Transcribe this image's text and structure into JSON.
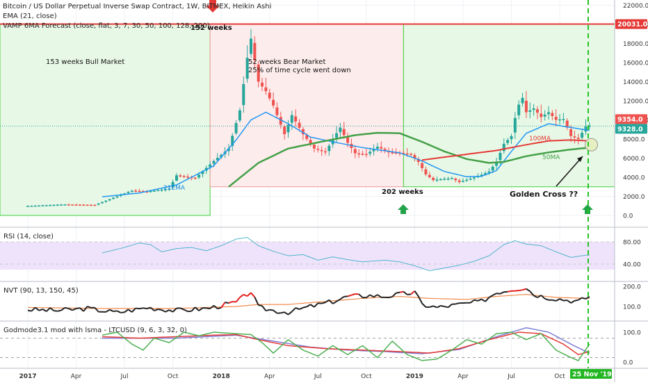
{
  "header": {
    "line1": "Bitcoin / US Dollar Perpetual Inverse Swap Contract, 1W, BITMEX, Heikin Ashi",
    "line2": "EMA (21, close)",
    "line3": "VAMP 6MA Forecast (close, flat, 3, 7, 30, 50, 100, 128, 200)"
  },
  "annotations": {
    "bull": "153 weeks Bull Market",
    "bear1": "52 weeks Bear Market",
    "bear2": "25% of time cycle went down",
    "top_weeks": "152 weeks",
    "bottom_weeks": "202 weeks",
    "golden": "Golden Cross ??",
    "ema_label": "21EMA",
    "ma100_label": "100MA",
    "ma50_label": "50MA"
  },
  "badges": {
    "level": "20031.0",
    "price1": "9354.0",
    "price2": "9328.0",
    "date": "25 Nov '19"
  },
  "colors": {
    "bull": "#26a69a",
    "bear": "#ef5350",
    "ema": "#2196f3",
    "ma100": "#e53935",
    "ma50": "#43a047",
    "green_zone": "#e8f8e6",
    "red_zone": "#fdecec",
    "rsi_band": "#efe3fb",
    "nvt_black": "#222222",
    "nvt_red": "#e31c1c",
    "nvt_orange": "#f08a4b",
    "god_green": "#4caf50",
    "god_red": "#e53935",
    "god_blue": "#7e7ed8",
    "dashed_green": "#22c322"
  },
  "chart_data": [
    {
      "type": "candlestick",
      "title": "Bitcoin / US Dollar Perpetual Inverse Swap Contract, 1W, BITMEX, Heikin Ashi",
      "x_ticks": [
        "2017",
        "Apr",
        "Jul",
        "Oct",
        "2018",
        "Apr",
        "Jul",
        "Oct",
        "2019",
        "Apr",
        "Jul",
        "Oct"
      ],
      "y_ticks": [
        "0.0",
        "2000.0",
        "4000.0",
        "6000.0",
        "8000.0",
        "10000.0",
        "12000.0",
        "14000.0",
        "16000.0",
        "18000.0",
        "20000.0",
        "22000.0"
      ],
      "ylim": [
        -700,
        22500
      ],
      "series_keypoints": {
        "price_close": [
          [
            0,
            1000
          ],
          [
            10,
            1150
          ],
          [
            18,
            1100
          ],
          [
            28,
            2600
          ],
          [
            32,
            2500
          ],
          [
            38,
            2800
          ],
          [
            40,
            4200
          ],
          [
            45,
            3900
          ],
          [
            50,
            5700
          ],
          [
            54,
            7000
          ],
          [
            57,
            11000
          ],
          [
            59,
            16500
          ],
          [
            60,
            18500
          ],
          [
            62,
            14000
          ],
          [
            64,
            13000
          ],
          [
            66,
            11500
          ],
          [
            69,
            8500
          ],
          [
            71,
            10500
          ],
          [
            74,
            8500
          ],
          [
            77,
            7000
          ],
          [
            80,
            6600
          ],
          [
            82,
            8000
          ],
          [
            84,
            9200
          ],
          [
            86,
            7600
          ],
          [
            88,
            6500
          ],
          [
            91,
            6400
          ],
          [
            94,
            7200
          ],
          [
            97,
            6600
          ],
          [
            100,
            6550
          ],
          [
            103,
            6400
          ],
          [
            105,
            5600
          ],
          [
            107,
            4300
          ],
          [
            109,
            3700
          ],
          [
            111,
            3800
          ],
          [
            114,
            3900
          ],
          [
            116,
            3500
          ],
          [
            119,
            3850
          ],
          [
            121,
            4100
          ],
          [
            124,
            4600
          ],
          [
            126,
            5600
          ],
          [
            128,
            7500
          ],
          [
            130,
            8300
          ],
          [
            131,
            10200
          ],
          [
            132,
            11600
          ],
          [
            133,
            12300
          ],
          [
            134,
            10800
          ],
          [
            136,
            11200
          ],
          [
            138,
            10300
          ],
          [
            140,
            10800
          ],
          [
            142,
            10000
          ],
          [
            144,
            10100
          ],
          [
            146,
            8300
          ],
          [
            148,
            8000
          ],
          [
            150,
            9300
          ],
          [
            151,
            9400
          ]
        ],
        "ema21": [
          [
            20,
            1950
          ],
          [
            30,
            2350
          ],
          [
            40,
            3200
          ],
          [
            50,
            5200
          ],
          [
            56,
            7900
          ],
          [
            60,
            10000
          ],
          [
            64,
            10800
          ],
          [
            70,
            9600
          ],
          [
            76,
            8200
          ],
          [
            82,
            7700
          ],
          [
            90,
            7100
          ],
          [
            100,
            6550
          ],
          [
            106,
            5700
          ],
          [
            112,
            4600
          ],
          [
            118,
            4050
          ],
          [
            122,
            4100
          ],
          [
            126,
            4700
          ],
          [
            130,
            6700
          ],
          [
            134,
            8600
          ],
          [
            140,
            9600
          ],
          [
            146,
            9200
          ],
          [
            151,
            8900
          ]
        ],
        "ma50": [
          [
            54,
            3000
          ],
          [
            62,
            5500
          ],
          [
            70,
            7000
          ],
          [
            80,
            7800
          ],
          [
            88,
            8400
          ],
          [
            94,
            8650
          ],
          [
            100,
            8600
          ],
          [
            106,
            7700
          ],
          [
            112,
            6700
          ],
          [
            118,
            5900
          ],
          [
            124,
            5500
          ],
          [
            128,
            5600
          ],
          [
            134,
            6200
          ],
          [
            140,
            6600
          ],
          [
            146,
            6900
          ],
          [
            151,
            7100
          ]
        ],
        "ma100": [
          [
            106,
            5800
          ],
          [
            116,
            6300
          ],
          [
            126,
            6800
          ],
          [
            134,
            7400
          ],
          [
            140,
            7800
          ],
          [
            146,
            7900
          ],
          [
            151,
            7800
          ]
        ]
      },
      "marker_labels": [
        "153 weeks Bull Market",
        "52 weeks Bear Market",
        "152 weeks",
        "202 weeks",
        "Golden Cross ??",
        "21EMA",
        "100MA",
        "50MA"
      ],
      "badges": [
        "20031.0",
        "9354.0",
        "9328.0",
        "25 Nov '19"
      ]
    },
    {
      "type": "line",
      "title": "RSI (14, close)",
      "y_ticks": [
        "40.00",
        "80.00"
      ],
      "ylim": [
        20,
        100
      ],
      "band": [
        30,
        70
      ],
      "series": [
        {
          "values": [
            [
              20,
              60
            ],
            [
              26,
              70
            ],
            [
              30,
              78
            ],
            [
              33,
              75
            ],
            [
              36,
              62
            ],
            [
              40,
              68
            ],
            [
              44,
              70
            ],
            [
              48,
              64
            ],
            [
              52,
              73
            ],
            [
              56,
              85
            ],
            [
              59,
              88
            ],
            [
              62,
              73
            ],
            [
              66,
              63
            ],
            [
              70,
              55
            ],
            [
              74,
              57
            ],
            [
              78,
              47
            ],
            [
              82,
              53
            ],
            [
              86,
              48
            ],
            [
              90,
              44
            ],
            [
              96,
              47
            ],
            [
              100,
              44
            ],
            [
              104,
              37
            ],
            [
              108,
              28
            ],
            [
              112,
              33
            ],
            [
              116,
              38
            ],
            [
              120,
              45
            ],
            [
              124,
              55
            ],
            [
              128,
              75
            ],
            [
              131,
              82
            ],
            [
              134,
              76
            ],
            [
              138,
              73
            ],
            [
              142,
              62
            ],
            [
              146,
              52
            ],
            [
              150,
              56
            ],
            [
              151,
              56
            ]
          ]
        }
      ]
    },
    {
      "type": "line",
      "title": "NVT (90, 13, 150, 45)",
      "y_ticks": [
        "100.0",
        "200.0"
      ],
      "ylim": [
        20,
        220
      ],
      "series": [
        {
          "values": [
            [
              0,
              85
            ],
            [
              8,
              80
            ],
            [
              16,
              90
            ],
            [
              24,
              70
            ],
            [
              32,
              95
            ],
            [
              40,
              80
            ],
            [
              48,
              90
            ],
            [
              56,
              120
            ],
            [
              60,
              175
            ],
            [
              62,
              95
            ],
            [
              66,
              80
            ],
            [
              70,
              72
            ],
            [
              76,
              100
            ],
            [
              82,
              125
            ],
            [
              86,
              150
            ],
            [
              92,
              155
            ],
            [
              96,
              150
            ],
            [
              100,
              160
            ],
            [
              104,
              170
            ],
            [
              106,
              110
            ],
            [
              110,
              95
            ],
            [
              114,
              105
            ],
            [
              118,
              115
            ],
            [
              122,
              125
            ],
            [
              126,
              170
            ],
            [
              130,
              185
            ],
            [
              134,
              195
            ],
            [
              136,
              160
            ],
            [
              140,
              145
            ],
            [
              144,
              135
            ],
            [
              148,
              125
            ],
            [
              151,
              150
            ]
          ]
        },
        {
          "values": [
            [
              0,
              95
            ],
            [
              20,
              90
            ],
            [
              40,
              90
            ],
            [
              56,
              100
            ],
            [
              62,
              110
            ],
            [
              70,
              110
            ],
            [
              80,
              125
            ],
            [
              90,
              140
            ],
            [
              100,
              150
            ],
            [
              108,
              140
            ],
            [
              118,
              135
            ],
            [
              126,
              150
            ],
            [
              134,
              160
            ],
            [
              142,
              145
            ],
            [
              151,
              140
            ]
          ]
        }
      ]
    },
    {
      "type": "line",
      "title": "Godmode3.1 mod with lsma - LTCUSD (9, 6, 3, 32, 0)",
      "y_ticks": [
        "0.0",
        "100.0"
      ],
      "ylim": [
        -20,
        140
      ],
      "series": [
        {
          "values": [
            [
              20,
              90
            ],
            [
              24,
              100
            ],
            [
              28,
              60
            ],
            [
              31,
              40
            ],
            [
              34,
              80
            ],
            [
              38,
              65
            ],
            [
              42,
              100
            ],
            [
              46,
              88
            ],
            [
              50,
              100
            ],
            [
              56,
              95
            ],
            [
              60,
              92
            ],
            [
              63,
              65
            ],
            [
              66,
              30
            ],
            [
              70,
              75
            ],
            [
              74,
              40
            ],
            [
              78,
              20
            ],
            [
              82,
              55
            ],
            [
              86,
              25
            ],
            [
              90,
              55
            ],
            [
              94,
              15
            ],
            [
              98,
              70
            ],
            [
              102,
              25
            ],
            [
              106,
              5
            ],
            [
              110,
              10
            ],
            [
              114,
              40
            ],
            [
              118,
              75
            ],
            [
              122,
              60
            ],
            [
              126,
              95
            ],
            [
              130,
              100
            ],
            [
              134,
              75
            ],
            [
              138,
              95
            ],
            [
              142,
              40
            ],
            [
              146,
              15
            ],
            [
              148,
              5
            ],
            [
              151,
              60
            ]
          ]
        },
        {
          "values": [
            [
              20,
              85
            ],
            [
              30,
              80
            ],
            [
              40,
              85
            ],
            [
              50,
              90
            ],
            [
              56,
              92
            ],
            [
              62,
              75
            ],
            [
              70,
              55
            ],
            [
              80,
              45
            ],
            [
              90,
              40
            ],
            [
              100,
              35
            ],
            [
              108,
              30
            ],
            [
              116,
              45
            ],
            [
              124,
              75
            ],
            [
              132,
              100
            ],
            [
              138,
              95
            ],
            [
              144,
              60
            ],
            [
              148,
              25
            ],
            [
              151,
              35
            ]
          ]
        },
        {
          "values": [
            [
              20,
              80
            ],
            [
              40,
              80
            ],
            [
              56,
              90
            ],
            [
              66,
              70
            ],
            [
              76,
              50
            ],
            [
              86,
              40
            ],
            [
              96,
              35
            ],
            [
              106,
              28
            ],
            [
              116,
              42
            ],
            [
              126,
              85
            ],
            [
              134,
              115
            ],
            [
              140,
              100
            ],
            [
              146,
              60
            ],
            [
              151,
              30
            ]
          ]
        }
      ]
    }
  ]
}
